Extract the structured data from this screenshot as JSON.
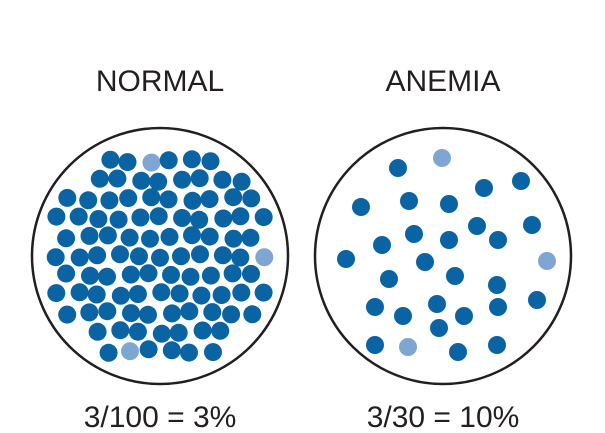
{
  "panels": [
    {
      "title": "NORMAL",
      "formula": "3/100 = 3%",
      "normal_cells": 97,
      "reticulocytes": 3,
      "total_cells": 100,
      "percentage": 3
    },
    {
      "title": "ANEMIA",
      "formula": "3/30 = 10%",
      "normal_cells": 27,
      "reticulocytes": 3,
      "total_cells": 30,
      "percentage": 10
    }
  ],
  "colors": {
    "red_cell": "#0a64a4",
    "reticulocyte": "#7fa6d3",
    "outline": "#231f20",
    "text": "#231f20",
    "background": "#ffffff"
  }
}
